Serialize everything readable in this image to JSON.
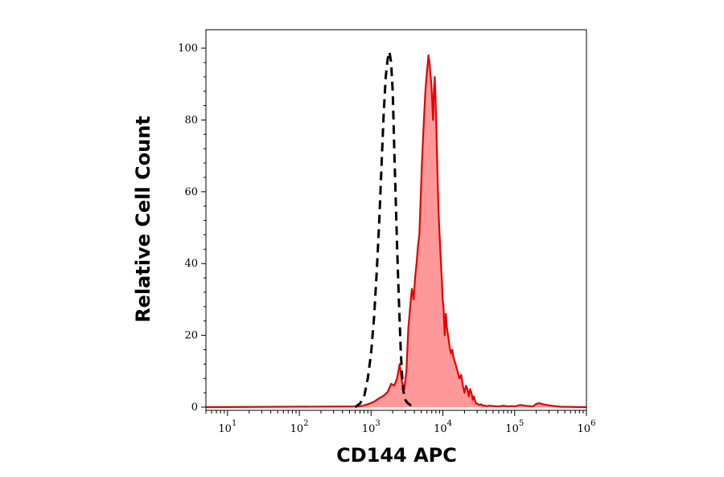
{
  "chart_data": {
    "type": "area",
    "title": "",
    "xlabel": "CD144 APC",
    "ylabel": "Relative Cell Count",
    "x_scale": "log",
    "xlim": [
      5,
      1000000
    ],
    "ylim": [
      0,
      105
    ],
    "x_ticks": [
      {
        "value": 10,
        "base": "10",
        "exp": "1"
      },
      {
        "value": 100,
        "base": "10",
        "exp": "2"
      },
      {
        "value": 1000,
        "base": "10",
        "exp": "3"
      },
      {
        "value": 10000,
        "base": "10",
        "exp": "4"
      },
      {
        "value": 100000,
        "base": "10",
        "exp": "5"
      },
      {
        "value": 1000000,
        "base": "10",
        "exp": "6"
      }
    ],
    "y_ticks": [
      "0",
      "20",
      "40",
      "60",
      "80",
      "100"
    ],
    "grid": false,
    "legend": "none",
    "series": [
      {
        "style": "filled",
        "color": "#e60000",
        "fill": "#ff9999",
        "x": [
          5,
          700,
          900,
          1100,
          1300,
          1500,
          1700,
          1900,
          2100,
          2300,
          2500,
          2700,
          2900,
          3100,
          3300,
          3500,
          3700,
          3900,
          4100,
          4300,
          4500,
          4700,
          4900,
          5100,
          5300,
          5500,
          5700,
          5900,
          6100,
          6300,
          6500,
          6700,
          6900,
          7100,
          7300,
          7500,
          7700,
          7900,
          8100,
          8300,
          8500,
          8700,
          8900,
          9100,
          9300,
          9500,
          9700,
          9900,
          10200,
          10600,
          11000,
          11400,
          11800,
          12200,
          12600,
          13000,
          13500,
          14000,
          14500,
          15000,
          16000,
          17000,
          18000,
          19000,
          20000,
          21000,
          22000,
          23000,
          24000,
          25000,
          26000,
          27000,
          28000,
          29000,
          30000,
          32000,
          34000,
          36000,
          38000,
          40000,
          45000,
          50000,
          60000,
          70000,
          80000,
          90000,
          100000,
          120000,
          140000,
          160000,
          180000,
          200000,
          220000,
          250000,
          280000,
          320000,
          360000,
          400000,
          450000,
          500000,
          600000,
          800000,
          1000000
        ],
        "y": [
          0,
          0.2,
          0.8,
          1.5,
          2.5,
          3.2,
          4.2,
          6.5,
          6,
          8,
          12,
          7,
          5,
          10,
          22,
          28,
          33,
          30,
          36,
          40,
          45,
          48,
          58,
          68,
          75,
          82,
          88,
          92,
          95,
          98,
          96,
          93,
          90,
          85,
          80,
          88,
          92,
          86,
          78,
          70,
          62,
          55,
          50,
          46,
          42,
          38,
          35,
          30,
          28,
          20,
          26,
          22,
          20,
          18,
          16,
          15,
          16,
          14,
          13,
          12,
          10,
          8,
          9,
          6,
          4,
          6,
          5,
          3,
          5,
          4,
          2,
          3,
          2,
          1,
          1,
          0.6,
          0.8,
          0.4,
          0.5,
          0.3,
          0.4,
          0.3,
          0.2,
          0.4,
          0.2,
          0.3,
          0.2,
          0.6,
          0.4,
          0.3,
          0.2,
          0.9,
          1.1,
          0.8,
          0.6,
          0.4,
          0.3,
          0.2,
          0.1,
          0.1,
          0.1,
          0,
          0
        ]
      },
      {
        "style": "dashed",
        "color": "#000000",
        "x": [
          600,
          700,
          800,
          900,
          1000,
          1100,
          1200,
          1300,
          1400,
          1500,
          1600,
          1700,
          1800,
          1900,
          2000,
          2100,
          2200,
          2300,
          2400,
          2500,
          2600,
          2700,
          2800,
          2900,
          3000,
          3200,
          3400,
          3600,
          3800,
          4000,
          4200
        ],
        "y": [
          0,
          1,
          3,
          8,
          15,
          25,
          38,
          52,
          68,
          82,
          92,
          97,
          99,
          96,
          88,
          72,
          58,
          45,
          34,
          24,
          15,
          9,
          5,
          3,
          2,
          1.2,
          0.8,
          0.5,
          0.3,
          0.2,
          0
        ]
      }
    ]
  }
}
